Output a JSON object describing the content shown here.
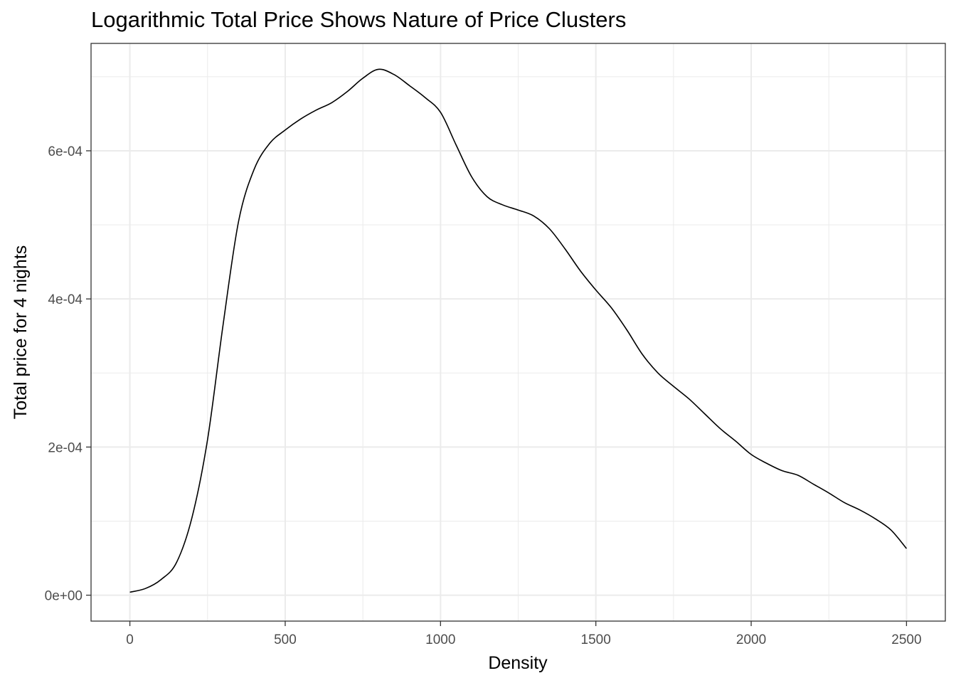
{
  "chart_data": {
    "type": "line",
    "title": "Logarithmic Total Price Shows Nature of Price Clusters",
    "xlabel": "Density",
    "ylabel": "Total price for 4 nights",
    "xlim": [
      -125,
      2625
    ],
    "ylim": [
      -3.5e-05,
      0.000745
    ],
    "x_ticks": [
      0,
      500,
      1000,
      1500,
      2000,
      2500
    ],
    "x_tick_labels": [
      "0",
      "500",
      "1000",
      "1500",
      "2000",
      "2500"
    ],
    "y_ticks": [
      0,
      0.0002,
      0.0004,
      0.0006
    ],
    "y_tick_labels": [
      "0e+00",
      "2e-04",
      "4e-04",
      "6e-04"
    ],
    "grid": true,
    "colors": {
      "line": "#000000",
      "grid": "#ebebeb",
      "border": "#333333",
      "background": "#ffffff"
    },
    "series": [
      {
        "x": [
          0,
          50,
          100,
          150,
          200,
          250,
          300,
          350,
          400,
          450,
          500,
          550,
          600,
          650,
          700,
          750,
          800,
          850,
          900,
          950,
          1000,
          1050,
          1100,
          1150,
          1200,
          1250,
          1300,
          1350,
          1400,
          1450,
          1500,
          1550,
          1600,
          1650,
          1700,
          1750,
          1800,
          1850,
          1900,
          1950,
          2000,
          2050,
          2100,
          2150,
          2200,
          2250,
          2300,
          2350,
          2400,
          2450,
          2500
        ],
        "y": [
          4e-06,
          9e-06,
          2.1e-05,
          4.4e-05,
          0.000105,
          0.00021,
          0.000365,
          0.000505,
          0.000575,
          0.00061,
          0.000628,
          0.000643,
          0.000655,
          0.000665,
          0.00068,
          0.000698,
          0.00071,
          0.000703,
          0.000688,
          0.000672,
          0.000652,
          0.000608,
          0.000565,
          0.000538,
          0.000527,
          0.00052,
          0.000512,
          0.000495,
          0.000468,
          0.000438,
          0.000412,
          0.000388,
          0.000358,
          0.000325,
          0.0003,
          0.000282,
          0.000265,
          0.000245,
          0.000225,
          0.000208,
          0.00019,
          0.000178,
          0.000168,
          0.000162,
          0.00015,
          0.000138,
          0.000125,
          0.000115,
          0.000103,
          8.8e-05,
          6.3e-05
        ]
      }
    ]
  }
}
